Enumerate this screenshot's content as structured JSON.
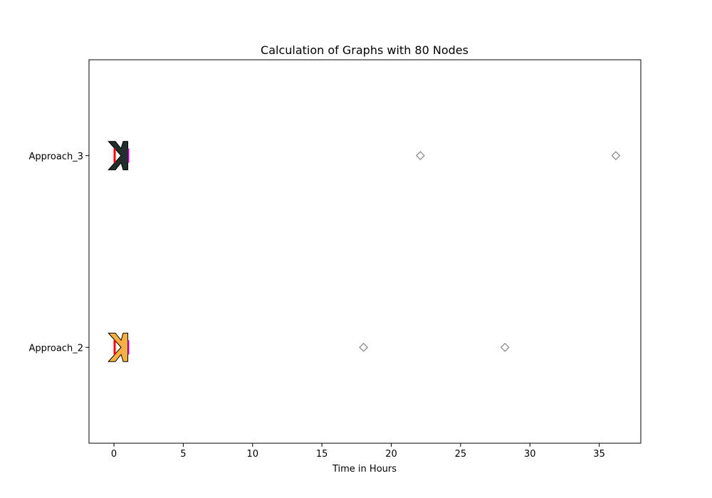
{
  "chart_data": {
    "type": "boxplot",
    "orientation": "horizontal",
    "title": "Calculation of Graphs with 80 Nodes",
    "xlabel": "Time in Hours",
    "ylabel": "",
    "xlim": [
      -1.8,
      38
    ],
    "xticks": [
      0,
      5,
      10,
      15,
      20,
      25,
      30,
      35
    ],
    "grid": false,
    "notched": true,
    "series": [
      {
        "name": "Approach_2",
        "color": "#F5B041",
        "whisker_low": -0.4,
        "q1": -0.4,
        "median": 0.05,
        "q3": 1.0,
        "whisker_high": 1.0,
        "notch_low": 0.05,
        "notch_high": 0.05,
        "mean": 1.05,
        "outliers": [
          18.0,
          28.2
        ]
      },
      {
        "name": "Approach_3",
        "color": "#212F2C",
        "whisker_low": -0.4,
        "q1": -0.4,
        "median": 0.05,
        "q3": 1.0,
        "whisker_high": 1.0,
        "notch_low": 0.05,
        "notch_high": 0.05,
        "mean": 1.05,
        "outliers": [
          22.1,
          36.2
        ]
      }
    ],
    "median_color": "#FF0000",
    "mean_color": "#CC00CC",
    "outlier_color": "#808080"
  }
}
